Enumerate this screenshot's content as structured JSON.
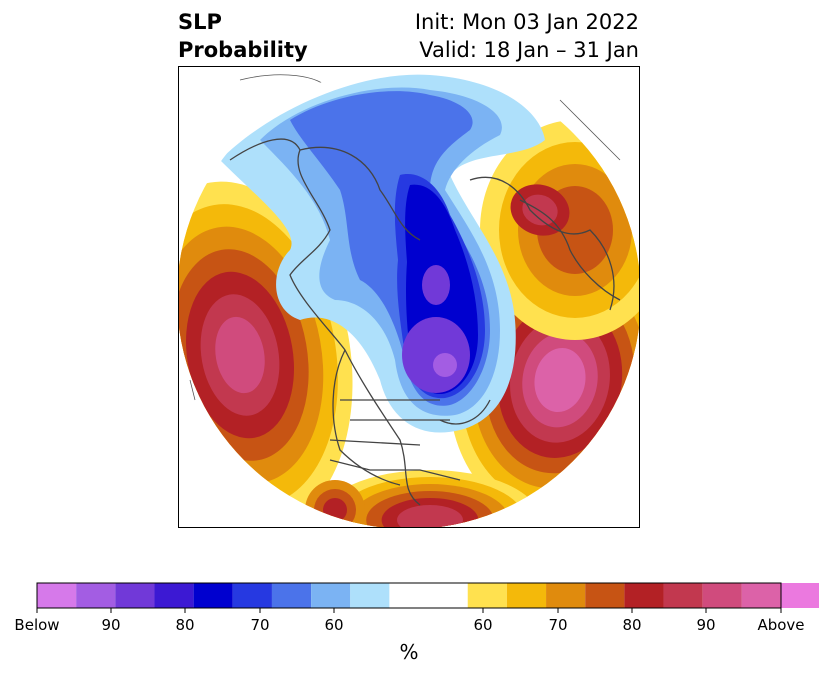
{
  "title": {
    "variable": "SLP",
    "subtitle": "Probability",
    "init": "Init: Mon 03 Jan 2022",
    "valid": "Valid: 18 Jan – 31 Jan"
  },
  "colors": {
    "below": [
      "#d679ea",
      "#a35de3",
      "#7139d8",
      "#3c19d3",
      "#0000cf",
      "#2639e1",
      "#4b73ea",
      "#7bb3f3",
      "#aee0fb"
    ],
    "neutral": "#ffffff",
    "above": [
      "#ffe14f",
      "#f4b90a",
      "#e08b0d",
      "#c75414",
      "#b32125",
      "#c2384f",
      "#d04b7d",
      "#dc62a8",
      "#eb79df"
    ],
    "coast": "#444444"
  },
  "colorbar": {
    "labels": [
      "Below",
      "90",
      "80",
      "70",
      "60",
      "60",
      "70",
      "80",
      "90",
      "Above"
    ],
    "unit": "%"
  }
}
